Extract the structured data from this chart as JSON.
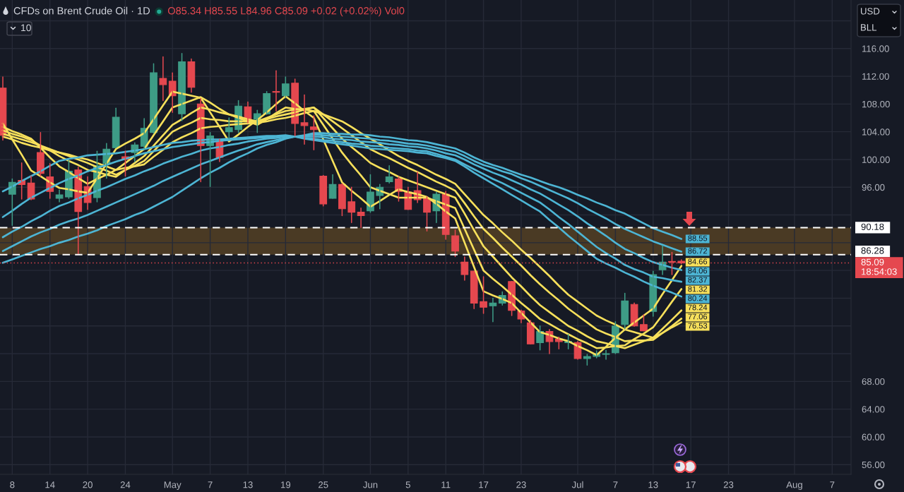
{
  "chart_data": {
    "type": "candlestick",
    "title": "CFDs on Brent Crude Oil · 1D",
    "annotations": [
      "O85.34 H85.55 L84.96 C85.09 +0.02 (+0.02%) Vol0",
      "10",
      "USD",
      "BLL"
    ],
    "categories": [
      null,
      "8",
      null,
      null,
      null,
      "14",
      null,
      null,
      null,
      "20",
      null,
      null,
      null,
      "24",
      null,
      null,
      null,
      null,
      "May",
      null,
      null,
      null,
      "7",
      null,
      null,
      null,
      "13",
      null,
      null,
      null,
      "19",
      null,
      null,
      null,
      "25",
      null,
      null,
      null,
      null,
      "Jun",
      null,
      null,
      null,
      "5",
      null,
      null,
      null,
      "11",
      null,
      null,
      null,
      "17",
      null,
      null,
      null,
      "23",
      null,
      null,
      null,
      null,
      null,
      "Jul",
      null,
      null,
      null,
      "7",
      null,
      null,
      null,
      "13",
      null,
      null,
      null,
      "17",
      null,
      null,
      null,
      "23",
      null,
      null,
      null,
      null,
      null,
      null,
      "Aug",
      null,
      null,
      null,
      "7",
      null,
      null
    ],
    "ohlc": [
      [
        110.3,
        111.9,
        102.8,
        103.5
      ],
      [
        95.0,
        97.2,
        90.5,
        96.7
      ],
      [
        97.0,
        99.5,
        94.3,
        96.4
      ],
      [
        96.6,
        97.6,
        94.2,
        94.3
      ],
      [
        101.0,
        103.9,
        97.6,
        98.0
      ],
      [
        97.5,
        99.4,
        94.4,
        95.4
      ],
      [
        94.4,
        95.6,
        93.9,
        94.9
      ],
      [
        94.6,
        99.9,
        94.4,
        98.3
      ],
      [
        98.5,
        98.9,
        86.3,
        92.5
      ],
      [
        96.1,
        97.5,
        92.8,
        93.8
      ],
      [
        94.5,
        101.2,
        93.9,
        99.1
      ],
      [
        99.4,
        102.3,
        97.3,
        101.5
      ],
      [
        101.7,
        107.4,
        101.7,
        106.1
      ],
      [
        100.4,
        101.2,
        97.6,
        100.0
      ],
      [
        101.0,
        102.4,
        99.7,
        102.1
      ],
      [
        101.9,
        105.9,
        101.5,
        104.5
      ],
      [
        103.9,
        113.8,
        103.8,
        112.5
      ],
      [
        111.7,
        114.8,
        108.5,
        110.8
      ],
      [
        111.3,
        112.5,
        106.8,
        109.2
      ],
      [
        106.6,
        115.3,
        105.6,
        114.1
      ],
      [
        114.1,
        114.5,
        109.7,
        110.4
      ],
      [
        108.0,
        108.8,
        96.8,
        102.0
      ],
      [
        102.0,
        103.9,
        96.1,
        103.4
      ],
      [
        102.6,
        102.9,
        99.7,
        100.3
      ],
      [
        104.0,
        106.0,
        103.0,
        104.6
      ],
      [
        104.3,
        108.5,
        103.9,
        107.7
      ],
      [
        107.6,
        108.3,
        105.3,
        105.7
      ],
      [
        105.8,
        107.1,
        103.9,
        106.6
      ],
      [
        106.6,
        109.8,
        106.5,
        109.5
      ],
      [
        109.8,
        112.8,
        107.0,
        109.7
      ],
      [
        109.2,
        111.9,
        109.0,
        110.9
      ],
      [
        111.0,
        111.6,
        103.4,
        105.2
      ],
      [
        105.3,
        109.3,
        102.2,
        104.9
      ],
      [
        104.7,
        106.3,
        101.4,
        104.3
      ],
      [
        97.6,
        97.7,
        93.3,
        93.6
      ],
      [
        94.4,
        97.8,
        94.4,
        96.4
      ],
      [
        96.4,
        96.5,
        91.9,
        92.9
      ],
      [
        93.9,
        96.0,
        90.9,
        92.4
      ],
      [
        92.4,
        93.0,
        90.2,
        91.9
      ],
      [
        92.6,
        97.8,
        92.4,
        95.3
      ],
      [
        94.8,
        96.4,
        92.9,
        96.0
      ],
      [
        96.8,
        99.1,
        96.6,
        97.5
      ],
      [
        97.2,
        97.5,
        94.0,
        95.4
      ],
      [
        95.3,
        96.0,
        92.8,
        92.8
      ],
      [
        95.5,
        98.2,
        93.8,
        94.2
      ],
      [
        94.4,
        94.6,
        89.7,
        92.4
      ],
      [
        92.6,
        95.3,
        90.9,
        95.0
      ],
      [
        95.0,
        95.4,
        88.5,
        89.2
      ],
      [
        89.0,
        89.85,
        86.0,
        86.8
      ],
      [
        85.2,
        85.95,
        82.6,
        83.4
      ],
      [
        83.9,
        83.9,
        78.5,
        79.3
      ],
      [
        79.5,
        83.1,
        77.8,
        78.7
      ],
      [
        78.9,
        80.0,
        76.6,
        79.3
      ],
      [
        79.3,
        80.9,
        79.0,
        80.4
      ],
      [
        82.4,
        82.4,
        77.5,
        78.25
      ],
      [
        78.15,
        78.3,
        76.45,
        77.0
      ],
      [
        76.45,
        76.8,
        73.4,
        73.4
      ],
      [
        73.6,
        76.0,
        72.55,
        75.2
      ],
      [
        75.2,
        75.5,
        72.0,
        73.75
      ],
      [
        74.1,
        74.4,
        72.7,
        73.75
      ],
      [
        73.6,
        74.75,
        72.7,
        73.75
      ],
      [
        73.6,
        73.75,
        71.2,
        71.3
      ],
      [
        71.3,
        71.9,
        70.35,
        71.6
      ],
      [
        71.6,
        72.4,
        71.4,
        72.0
      ],
      [
        71.9,
        72.5,
        71.2,
        72.0
      ],
      [
        72.15,
        76.6,
        72.0,
        76.0
      ],
      [
        76.2,
        80.7,
        75.6,
        79.6
      ],
      [
        79.1,
        79.3,
        75.95,
        76.0
      ],
      [
        76.2,
        77.6,
        75.3,
        75.3
      ],
      [
        78.1,
        83.9,
        77.4,
        83.4
      ],
      [
        84.1,
        87.55,
        83.4,
        85.2
      ],
      [
        85.3,
        86.6,
        83.4,
        85.2
      ],
      [
        85.34,
        85.55,
        84.96,
        85.09
      ],
      null,
      null,
      null,
      null,
      null,
      null,
      null,
      null,
      null,
      null,
      null,
      null,
      null,
      null,
      null,
      null,
      null,
      null
    ],
    "series": [
      {
        "type": "line",
        "color": "#f7e05b",
        "values": [
          105.2,
          102.9,
          100.7,
          98.4,
          97.6,
          96.7,
          95.9,
          95.7,
          95.4,
          95.2,
          97.3,
          99.4,
          101.5,
          102.3,
          103.0,
          103.8,
          105.8,
          107.8,
          109.8,
          109.5,
          109.2,
          108.9,
          106.8,
          104.7,
          102.6,
          103.6,
          104.7,
          105.7,
          106.8,
          108.0,
          109.1,
          108.1,
          107.0,
          106.0,
          102.9,
          99.8,
          96.7,
          95.5,
          94.4,
          93.2,
          94.0,
          94.9,
          95.7,
          95.3,
          95.0,
          94.6,
          93.6,
          92.5,
          91.5,
          88.0,
          84.5,
          81.0,
          80.4,
          79.9,
          79.3,
          77.9,
          76.5,
          75.1,
          74.7,
          74.2,
          73.8,
          73.1,
          72.5,
          71.8,
          73.0,
          74.3,
          75.5,
          76.5,
          77.5,
          78.5,
          80.6,
          82.6,
          84.66,
          null,
          null,
          null,
          null,
          null,
          null,
          null,
          null,
          null,
          null,
          null,
          null,
          null,
          null,
          null,
          null,
          null,
          null
        ],
        "value_labels": [
          null,
          null,
          null,
          null,
          null,
          null,
          null,
          null,
          null,
          null,
          null,
          null,
          null,
          null,
          null,
          null,
          null,
          null,
          null,
          null,
          null,
          null,
          null,
          null,
          null,
          null,
          null,
          null,
          null,
          null,
          null,
          null,
          null,
          null,
          null,
          null,
          null,
          null,
          null,
          null,
          null,
          null,
          null,
          null,
          null,
          null,
          null,
          null,
          null,
          null,
          null,
          null,
          null,
          null,
          null,
          null,
          null,
          null,
          null,
          null,
          null,
          null,
          null,
          null,
          null,
          null,
          null,
          null,
          null,
          null,
          null,
          null,
          "84.66",
          null,
          null,
          null,
          null,
          null,
          null,
          null,
          null,
          null,
          null,
          null,
          null,
          null,
          null,
          null,
          null,
          null,
          null
        ]
      },
      {
        "type": "line",
        "color": "#f7e05b",
        "values": [
          104.7,
          104.1,
          103.6,
          103.0,
          101.7,
          100.3,
          99.0,
          98.2,
          97.3,
          96.5,
          97.2,
          97.8,
          98.5,
          99.5,
          100.5,
          101.5,
          103.5,
          105.5,
          107.5,
          108.0,
          108.5,
          109.0,
          108.2,
          107.3,
          106.5,
          106.0,
          105.5,
          105.0,
          105.8,
          106.7,
          107.5,
          107.3,
          107.2,
          107.0,
          105.0,
          103.0,
          101.0,
          99.3,
          97.7,
          96.0,
          95.5,
          95.0,
          94.5,
          94.5,
          94.5,
          94.5,
          94.0,
          93.5,
          93.0,
          90.0,
          87.0,
          84.0,
          82.8,
          81.7,
          80.5,
          79.3,
          78.2,
          77.0,
          76.3,
          75.5,
          74.8,
          74.1,
          73.5,
          72.8,
          72.9,
          73.1,
          73.2,
          74.1,
          74.9,
          75.8,
          77.6,
          79.5,
          81.32,
          null,
          null,
          null,
          null,
          null,
          null,
          null,
          null,
          null,
          null,
          null,
          null,
          null,
          null,
          null,
          null,
          null,
          null
        ],
        "value_labels": [
          null,
          null,
          null,
          null,
          null,
          null,
          null,
          null,
          null,
          null,
          null,
          null,
          null,
          null,
          null,
          null,
          null,
          null,
          null,
          null,
          null,
          null,
          null,
          null,
          null,
          null,
          null,
          null,
          null,
          null,
          null,
          null,
          null,
          null,
          null,
          null,
          null,
          null,
          null,
          null,
          null,
          null,
          null,
          null,
          null,
          null,
          null,
          null,
          null,
          null,
          null,
          null,
          null,
          null,
          null,
          null,
          null,
          null,
          null,
          null,
          null,
          null,
          null,
          null,
          null,
          null,
          null,
          null,
          null,
          null,
          null,
          null,
          "81.32",
          null,
          null,
          null,
          null,
          null,
          null,
          null,
          null,
          null,
          null,
          null,
          null,
          null,
          null,
          null,
          null,
          null,
          null
        ]
      },
      {
        "type": "line",
        "color": "#f7e05b",
        "values": [
          104.2,
          103.7,
          103.3,
          102.8,
          102.0,
          101.3,
          100.5,
          99.8,
          99.2,
          98.5,
          98.2,
          97.8,
          97.5,
          98.5,
          99.5,
          100.5,
          102.0,
          103.5,
          105.0,
          105.8,
          106.7,
          107.5,
          107.2,
          106.8,
          106.5,
          106.2,
          105.8,
          105.5,
          106.0,
          106.5,
          107.0,
          107.2,
          107.3,
          107.5,
          106.0,
          104.5,
          103.0,
          101.8,
          100.7,
          99.5,
          98.8,
          98.2,
          97.5,
          97.0,
          96.5,
          96.0,
          95.5,
          95.0,
          94.5,
          92.2,
          89.8,
          87.5,
          86.0,
          84.5,
          83.0,
          81.7,
          80.3,
          79.0,
          78.0,
          77.0,
          76.0,
          75.3,
          74.5,
          73.8,
          73.5,
          73.1,
          72.8,
          73.3,
          73.8,
          74.3,
          75.6,
          76.9,
          78.24,
          null,
          null,
          null,
          null,
          null,
          null,
          null,
          null,
          null,
          null,
          null,
          null,
          null,
          null,
          null,
          null,
          null,
          null
        ],
        "value_labels": [
          null,
          null,
          null,
          null,
          null,
          null,
          null,
          null,
          null,
          null,
          null,
          null,
          null,
          null,
          null,
          null,
          null,
          null,
          null,
          null,
          null,
          null,
          null,
          null,
          null,
          null,
          null,
          null,
          null,
          null,
          null,
          null,
          null,
          null,
          null,
          null,
          null,
          null,
          null,
          null,
          null,
          null,
          null,
          null,
          null,
          null,
          null,
          null,
          null,
          null,
          null,
          null,
          null,
          null,
          null,
          null,
          null,
          null,
          null,
          null,
          null,
          null,
          null,
          null,
          null,
          null,
          null,
          null,
          null,
          null,
          null,
          null,
          "78.24",
          null,
          null,
          null,
          null,
          null,
          null,
          null,
          null,
          null,
          null,
          null,
          null,
          null,
          null,
          null,
          null,
          null,
          null
        ]
      },
      {
        "type": "line",
        "color": "#f7e05b",
        "values": [
          103.7,
          103.3,
          102.9,
          102.5,
          102.0,
          101.5,
          101.0,
          100.5,
          100.0,
          99.5,
          98.9,
          98.4,
          97.8,
          98.5,
          99.1,
          99.8,
          101.2,
          102.6,
          104.0,
          104.7,
          105.3,
          106.0,
          105.8,
          105.7,
          105.5,
          105.5,
          105.5,
          105.5,
          105.8,
          106.2,
          106.5,
          106.8,
          107.2,
          107.5,
          106.5,
          105.5,
          104.5,
          103.5,
          102.5,
          101.5,
          100.8,
          100.2,
          99.5,
          98.8,
          98.2,
          97.5,
          96.8,
          96.2,
          95.5,
          93.7,
          91.8,
          90.0,
          88.7,
          87.3,
          86.0,
          84.7,
          83.3,
          82.0,
          80.8,
          79.7,
          78.5,
          77.5,
          76.5,
          75.5,
          74.9,
          74.4,
          73.8,
          73.9,
          73.9,
          74.0,
          75.0,
          76.0,
          77.06,
          null,
          null,
          null,
          null,
          null,
          null,
          null,
          null,
          null,
          null,
          null,
          null,
          null,
          null,
          null,
          null,
          null,
          null
        ],
        "value_labels": [
          null,
          null,
          null,
          null,
          null,
          null,
          null,
          null,
          null,
          null,
          null,
          null,
          null,
          null,
          null,
          null,
          null,
          null,
          null,
          null,
          null,
          null,
          null,
          null,
          null,
          null,
          null,
          null,
          null,
          null,
          null,
          null,
          null,
          null,
          null,
          null,
          null,
          null,
          null,
          null,
          null,
          null,
          null,
          null,
          null,
          null,
          null,
          null,
          null,
          null,
          null,
          null,
          null,
          null,
          null,
          null,
          null,
          null,
          null,
          null,
          null,
          null,
          null,
          null,
          null,
          null,
          null,
          null,
          null,
          null,
          null,
          null,
          "77.06",
          null,
          null,
          null,
          null,
          null,
          null,
          null,
          null,
          null,
          null,
          null,
          null,
          null,
          null,
          null,
          null,
          null,
          null
        ]
      },
      {
        "type": "line",
        "color": "#f7e05b",
        "values": [
          103.3,
          102.9,
          102.4,
          102.0,
          101.7,
          101.3,
          101.0,
          100.7,
          100.3,
          100.0,
          99.5,
          99.0,
          98.5,
          98.8,
          99.0,
          99.3,
          100.4,
          101.4,
          102.5,
          103.2,
          103.8,
          104.5,
          104.7,
          104.8,
          105.0,
          105.1,
          105.2,
          105.3,
          105.5,
          105.8,
          106.0,
          106.3,
          106.7,
          107.0,
          106.5,
          106.0,
          105.5,
          104.7,
          103.8,
          103.0,
          102.2,
          101.3,
          100.5,
          99.8,
          99.2,
          98.5,
          97.8,
          97.2,
          96.5,
          95.0,
          93.5,
          92.0,
          90.8,
          89.5,
          88.3,
          87.0,
          85.8,
          84.5,
          83.2,
          81.8,
          80.5,
          79.5,
          78.5,
          77.5,
          76.8,
          76.2,
          75.5,
          75.1,
          74.7,
          74.3,
          75.0,
          75.8,
          76.53,
          null,
          null,
          null,
          null,
          null,
          null,
          null,
          null,
          null,
          null,
          null,
          null,
          null,
          null,
          null,
          null,
          null,
          null
        ],
        "value_labels": [
          null,
          null,
          null,
          null,
          null,
          null,
          null,
          null,
          null,
          null,
          null,
          null,
          null,
          null,
          null,
          null,
          null,
          null,
          null,
          null,
          null,
          null,
          null,
          null,
          null,
          null,
          null,
          null,
          null,
          null,
          null,
          null,
          null,
          null,
          null,
          null,
          null,
          null,
          null,
          null,
          null,
          null,
          null,
          null,
          null,
          null,
          null,
          null,
          null,
          null,
          null,
          null,
          null,
          null,
          null,
          null,
          null,
          null,
          null,
          null,
          null,
          null,
          null,
          null,
          null,
          null,
          null,
          null,
          null,
          null,
          null,
          null,
          "76.53",
          null,
          null,
          null,
          null,
          null,
          null,
          null,
          null,
          null,
          null,
          null,
          null,
          null,
          null,
          null,
          null,
          null,
          null
        ]
      },
      {
        "type": "line",
        "color": "#4db5d4",
        "values": [
          95.4,
          96.1,
          96.9,
          97.6,
          98.3,
          99.1,
          99.8,
          100.1,
          100.3,
          100.6,
          100.7,
          100.8,
          100.9,
          101.1,
          101.3,
          101.5,
          101.8,
          102.1,
          102.4,
          102.5,
          102.7,
          102.8,
          102.9,
          102.9,
          103.0,
          103.1,
          103.2,
          103.3,
          103.4,
          103.4,
          103.5,
          103.3,
          103.0,
          102.8,
          102.6,
          102.4,
          102.2,
          102.0,
          101.8,
          101.6,
          101.5,
          101.4,
          101.3,
          101.2,
          101.0,
          100.9,
          100.5,
          100.2,
          99.8,
          99.0,
          98.1,
          97.3,
          96.5,
          95.7,
          94.9,
          94.1,
          93.3,
          92.5,
          91.3,
          90.2,
          89.0,
          87.9,
          86.8,
          85.7,
          85.0,
          84.4,
          83.7,
          83.1,
          82.4,
          81.8,
          81.3,
          80.8,
          80.24,
          null,
          null,
          null,
          null,
          null,
          null,
          null,
          null,
          null,
          null,
          null,
          null,
          null,
          null,
          null,
          null,
          null,
          null
        ],
        "value_labels": [
          null,
          null,
          null,
          null,
          null,
          null,
          null,
          null,
          null,
          null,
          null,
          null,
          null,
          null,
          null,
          null,
          null,
          null,
          null,
          null,
          null,
          null,
          null,
          null,
          null,
          null,
          null,
          null,
          null,
          null,
          null,
          null,
          null,
          null,
          null,
          null,
          null,
          null,
          null,
          null,
          null,
          null,
          null,
          null,
          null,
          null,
          null,
          null,
          null,
          null,
          null,
          null,
          null,
          null,
          null,
          null,
          null,
          null,
          null,
          null,
          null,
          null,
          null,
          null,
          null,
          null,
          null,
          null,
          null,
          null,
          null,
          null,
          "80.24",
          null,
          null,
          null,
          null,
          null,
          null,
          null,
          null,
          null,
          null,
          null,
          null,
          null,
          null,
          null,
          null,
          null,
          null
        ]
      },
      {
        "type": "line",
        "color": "#4db5d4",
        "values": [
          91.7,
          92.6,
          93.6,
          94.5,
          95.2,
          95.9,
          96.6,
          97.2,
          97.7,
          98.3,
          98.8,
          99.2,
          99.7,
          100.1,
          100.5,
          100.9,
          101.2,
          101.5,
          101.8,
          102.0,
          102.2,
          102.4,
          102.5,
          102.7,
          102.8,
          102.9,
          103.0,
          103.1,
          103.2,
          103.3,
          103.4,
          103.3,
          103.1,
          103.0,
          102.8,
          102.7,
          102.5,
          102.3,
          102.2,
          102.0,
          101.9,
          101.7,
          101.6,
          101.5,
          101.3,
          101.2,
          100.8,
          100.4,
          100.0,
          99.3,
          98.6,
          97.9,
          97.2,
          96.6,
          95.9,
          95.2,
          94.5,
          93.8,
          92.8,
          91.7,
          90.7,
          89.6,
          88.5,
          87.4,
          86.5,
          85.7,
          84.8,
          84.2,
          83.7,
          83.1,
          82.9,
          82.6,
          82.37,
          null,
          null,
          null,
          null,
          null,
          null,
          null,
          null,
          null,
          null,
          null,
          null,
          null,
          null,
          null,
          null,
          null,
          null
        ],
        "value_labels": [
          null,
          null,
          null,
          null,
          null,
          null,
          null,
          null,
          null,
          null,
          null,
          null,
          null,
          null,
          null,
          null,
          null,
          null,
          null,
          null,
          null,
          null,
          null,
          null,
          null,
          null,
          null,
          null,
          null,
          null,
          null,
          null,
          null,
          null,
          null,
          null,
          null,
          null,
          null,
          null,
          null,
          null,
          null,
          null,
          null,
          null,
          null,
          null,
          null,
          null,
          null,
          null,
          null,
          null,
          null,
          null,
          null,
          null,
          null,
          null,
          null,
          null,
          null,
          null,
          null,
          null,
          null,
          null,
          null,
          null,
          null,
          null,
          "82.37",
          null,
          null,
          null,
          null,
          null,
          null,
          null,
          null,
          null,
          null,
          null,
          null,
          null,
          null,
          null,
          null,
          null,
          null
        ]
      },
      {
        "type": "line",
        "color": "#4db5d4",
        "values": [
          88.8,
          89.6,
          90.3,
          91.1,
          91.8,
          92.6,
          93.3,
          93.8,
          94.4,
          94.9,
          95.5,
          96.0,
          96.6,
          97.2,
          97.7,
          98.3,
          98.8,
          99.4,
          99.9,
          100.4,
          100.8,
          101.3,
          101.6,
          101.8,
          102.1,
          102.3,
          102.6,
          102.8,
          103.0,
          103.1,
          103.3,
          103.3,
          103.3,
          103.3,
          103.2,
          103.0,
          102.9,
          102.8,
          102.6,
          102.5,
          102.4,
          102.2,
          102.1,
          101.9,
          101.8,
          101.6,
          101.3,
          100.9,
          100.6,
          100.0,
          99.3,
          98.7,
          98.1,
          97.6,
          97.0,
          96.4,
          95.7,
          95.1,
          94.3,
          93.5,
          92.7,
          91.8,
          90.8,
          89.9,
          89.0,
          88.0,
          87.1,
          86.5,
          85.8,
          85.2,
          84.8,
          84.4,
          84.06,
          null,
          null,
          null,
          null,
          null,
          null,
          null,
          null,
          null,
          null,
          null,
          null,
          null,
          null,
          null,
          null,
          null,
          null
        ],
        "value_labels": [
          null,
          null,
          null,
          null,
          null,
          null,
          null,
          null,
          null,
          null,
          null,
          null,
          null,
          null,
          null,
          null,
          null,
          null,
          null,
          null,
          null,
          null,
          null,
          null,
          null,
          null,
          null,
          null,
          null,
          null,
          null,
          null,
          null,
          null,
          null,
          null,
          null,
          null,
          null,
          null,
          null,
          null,
          null,
          null,
          null,
          null,
          null,
          null,
          null,
          null,
          null,
          null,
          null,
          null,
          null,
          null,
          null,
          null,
          null,
          null,
          null,
          null,
          null,
          null,
          null,
          null,
          null,
          null,
          null,
          null,
          null,
          null,
          "84.06",
          null,
          null,
          null,
          null,
          null,
          null,
          null,
          null,
          null,
          null,
          null,
          null,
          null,
          null,
          null,
          null,
          null,
          null
        ]
      },
      {
        "type": "line",
        "color": "#4db5d4",
        "values": [
          86.8,
          87.5,
          88.2,
          88.9,
          89.5,
          90.0,
          90.6,
          91.1,
          91.5,
          92.0,
          92.6,
          93.2,
          93.8,
          94.4,
          95.0,
          95.6,
          96.2,
          96.9,
          97.5,
          98.1,
          98.7,
          99.3,
          99.8,
          100.3,
          100.8,
          101.3,
          101.7,
          102.2,
          102.5,
          102.8,
          103.1,
          103.3,
          103.4,
          103.6,
          103.5,
          103.4,
          103.3,
          103.2,
          103.1,
          103.0,
          102.8,
          102.7,
          102.5,
          102.3,
          102.2,
          102.0,
          101.7,
          101.4,
          101.1,
          100.5,
          99.8,
          99.2,
          98.8,
          98.3,
          97.9,
          97.3,
          96.8,
          96.2,
          95.6,
          95.0,
          94.4,
          93.7,
          92.9,
          92.2,
          91.5,
          90.7,
          90.0,
          89.4,
          88.8,
          88.2,
          87.7,
          87.2,
          86.72,
          null,
          null,
          null,
          null,
          null,
          null,
          null,
          null,
          null,
          null,
          null,
          null,
          null,
          null,
          null,
          null,
          null,
          null
        ],
        "value_labels": [
          null,
          null,
          null,
          null,
          null,
          null,
          null,
          null,
          null,
          null,
          null,
          null,
          null,
          null,
          null,
          null,
          null,
          null,
          null,
          null,
          null,
          null,
          null,
          null,
          null,
          null,
          null,
          null,
          null,
          null,
          null,
          null,
          null,
          null,
          null,
          null,
          null,
          null,
          null,
          null,
          null,
          null,
          null,
          null,
          null,
          null,
          null,
          null,
          null,
          null,
          null,
          null,
          null,
          null,
          null,
          null,
          null,
          null,
          null,
          null,
          null,
          null,
          null,
          null,
          null,
          null,
          null,
          null,
          null,
          null,
          null,
          null,
          "86.72",
          null,
          null,
          null,
          null,
          null,
          null,
          null,
          null,
          null,
          null,
          null,
          null,
          null,
          null,
          null,
          null,
          null,
          null
        ]
      },
      {
        "type": "line",
        "color": "#4db5d4",
        "values": [
          85.1,
          85.6,
          86.1,
          86.6,
          87.1,
          87.5,
          88.0,
          88.4,
          88.9,
          89.3,
          89.8,
          90.4,
          90.9,
          91.4,
          92.0,
          92.5,
          93.2,
          93.9,
          94.6,
          95.5,
          96.4,
          97.3,
          98.1,
          98.8,
          99.6,
          100.3,
          100.9,
          101.6,
          102.1,
          102.5,
          103.0,
          103.3,
          103.5,
          103.8,
          103.8,
          103.7,
          103.7,
          103.6,
          103.6,
          103.5,
          103.3,
          103.2,
          103.0,
          102.8,
          102.7,
          102.5,
          102.2,
          101.9,
          101.6,
          101.0,
          100.3,
          99.7,
          99.2,
          98.8,
          98.3,
          97.8,
          97.4,
          96.9,
          96.4,
          96.0,
          95.5,
          94.9,
          94.4,
          93.8,
          93.3,
          92.7,
          92.2,
          91.5,
          90.8,
          90.1,
          89.6,
          89.1,
          88.55,
          null,
          null,
          null,
          null,
          null,
          null,
          null,
          null,
          null,
          null,
          null,
          null,
          null,
          null,
          null,
          null,
          null,
          null
        ],
        "value_labels": [
          null,
          null,
          null,
          null,
          null,
          null,
          null,
          null,
          null,
          null,
          null,
          null,
          null,
          null,
          null,
          null,
          null,
          null,
          null,
          null,
          null,
          null,
          null,
          null,
          null,
          null,
          null,
          null,
          null,
          null,
          null,
          null,
          null,
          null,
          null,
          null,
          null,
          null,
          null,
          null,
          null,
          null,
          null,
          null,
          null,
          null,
          null,
          null,
          null,
          null,
          null,
          null,
          null,
          null,
          null,
          null,
          null,
          null,
          null,
          null,
          null,
          null,
          null,
          null,
          null,
          null,
          null,
          null,
          null,
          null,
          null,
          null,
          "88.55",
          null,
          null,
          null,
          null,
          null,
          null,
          null,
          null,
          null,
          null,
          null,
          null,
          null,
          null,
          null,
          null,
          null,
          null
        ]
      }
    ],
    "ylim": [
      54.6,
      123.0
    ],
    "yticks": [
      {
        "value": 56,
        "label": "56.00"
      },
      {
        "value": 60,
        "label": "60.00"
      },
      {
        "value": 64,
        "label": "64.00"
      },
      {
        "value": 68,
        "label": "68.00"
      },
      {
        "value": 72,
        "label": null
      },
      {
        "value": 76,
        "label": null
      },
      {
        "value": 80,
        "label": null
      },
      {
        "value": 84,
        "label": null
      },
      {
        "value": 88,
        "label": null
      },
      {
        "value": 92,
        "label": null
      },
      {
        "value": 96,
        "label": "96.00"
      },
      {
        "value": 100,
        "label": "100.00"
      },
      {
        "value": 104,
        "label": "104.00"
      },
      {
        "value": 108,
        "label": "108.00"
      },
      {
        "value": 112,
        "label": "112.00"
      },
      {
        "value": 116,
        "label": "116.00"
      },
      {
        "value": 120,
        "label": null
      }
    ],
    "ref_lines": [
      {
        "axis": "y",
        "value": 90.18,
        "label": "90.18",
        "color": "#ffffff",
        "line_style": "dashed"
      },
      {
        "axis": "y",
        "value": 86.28,
        "label": "86.28",
        "color": "#ffffff",
        "line_style": "dashed"
      },
      {
        "axis": "y",
        "value": 85.09,
        "label": "85.09\n18:54:03",
        "color": "#e5484f",
        "line_style": "dotted"
      }
    ],
    "bands": [
      {
        "axis": "y",
        "from": 86.28,
        "to": 90.18,
        "color": "#4a3a24"
      }
    ],
    "grid": true
  }
}
